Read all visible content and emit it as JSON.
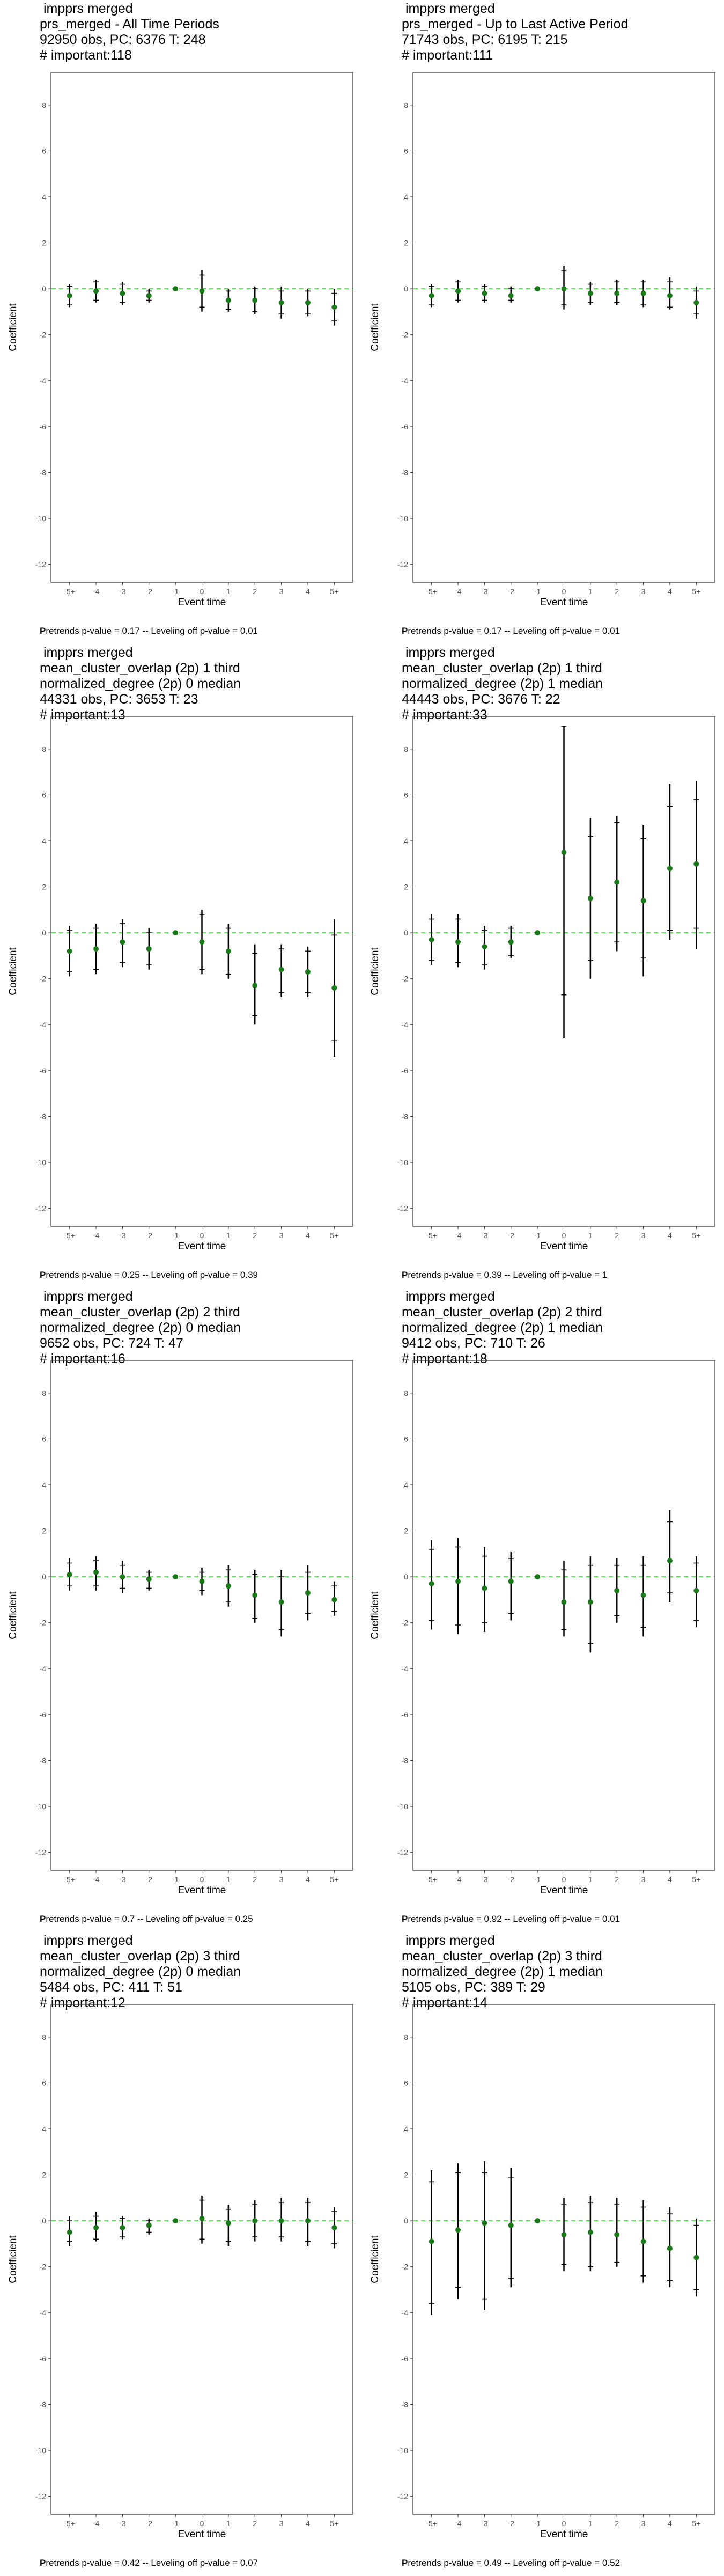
{
  "colors": {
    "point": "#1a7a1a",
    "refline": "#19c219",
    "bar": "#000000",
    "frame": "#333333",
    "tick_text": "#4d4d4d"
  },
  "chart_data": [
    {
      "type": "scatter",
      "title_lines": [
        "impprs merged",
        "prs_merged - All Time Periods",
        "92950 obs, PC: 6376 T: 248",
        "# important:118"
      ],
      "footer": {
        "bold": "P",
        "rest": "retrends p-value = 0.17 -- Leveling off p-value = 0.01"
      },
      "xlabel": "Event time",
      "ylabel": "Coefficient",
      "categories": [
        "-5+",
        "-4",
        "-3",
        "-2",
        "-1",
        "0",
        "1",
        "2",
        "3",
        "4",
        "5+"
      ],
      "ylim": [
        -12.5,
        9
      ],
      "yticks": [
        -12,
        -10,
        -8,
        -6,
        -4,
        -2,
        0,
        2,
        4,
        6,
        8
      ],
      "estimates": [
        -0.3,
        -0.1,
        -0.2,
        -0.3,
        0.0,
        -0.1,
        -0.5,
        -0.5,
        -0.6,
        -0.6,
        -0.8
      ],
      "ci95": [
        [
          -0.8,
          0.2
        ],
        [
          -0.6,
          0.4
        ],
        [
          -0.7,
          0.3
        ],
        [
          -0.6,
          0.0
        ],
        [
          0,
          0
        ],
        [
          -1.0,
          0.8
        ],
        [
          -1.0,
          0.0
        ],
        [
          -1.1,
          0.1
        ],
        [
          -1.3,
          0.1
        ],
        [
          -1.2,
          0.0
        ],
        [
          -1.6,
          0.0
        ]
      ],
      "ci90": [
        [
          -0.7,
          0.1
        ],
        [
          -0.5,
          0.3
        ],
        [
          -0.6,
          0.2
        ],
        [
          -0.5,
          -0.1
        ],
        [
          0,
          0
        ],
        [
          -0.8,
          0.6
        ],
        [
          -0.9,
          -0.1
        ],
        [
          -1.0,
          0.0
        ],
        [
          -1.1,
          -0.1
        ],
        [
          -1.1,
          -0.1
        ],
        [
          -1.4,
          -0.2
        ]
      ]
    },
    {
      "type": "scatter",
      "title_lines": [
        "impprs merged",
        "prs_merged - Up to Last Active Period",
        "71743 obs, PC: 6195 T: 215",
        "# important:111"
      ],
      "footer": {
        "bold": "P",
        "rest": "retrends p-value = 0.17 -- Leveling off p-value = 0.01"
      },
      "xlabel": "Event time",
      "ylabel": "Coefficient",
      "categories": [
        "-5+",
        "-4",
        "-3",
        "-2",
        "-1",
        "0",
        "1",
        "2",
        "3",
        "4",
        "5+"
      ],
      "ylim": [
        -12.5,
        9
      ],
      "yticks": [
        -12,
        -10,
        -8,
        -6,
        -4,
        -2,
        0,
        2,
        4,
        6,
        8
      ],
      "estimates": [
        -0.3,
        -0.1,
        -0.2,
        -0.3,
        0.0,
        0.0,
        -0.2,
        -0.2,
        -0.2,
        -0.3,
        -0.6
      ],
      "ci95": [
        [
          -0.8,
          0.2
        ],
        [
          -0.6,
          0.4
        ],
        [
          -0.6,
          0.2
        ],
        [
          -0.6,
          0.1
        ],
        [
          0,
          0
        ],
        [
          -0.9,
          1.0
        ],
        [
          -0.7,
          0.3
        ],
        [
          -0.7,
          0.4
        ],
        [
          -0.8,
          0.4
        ],
        [
          -0.9,
          0.5
        ],
        [
          -1.3,
          0.1
        ]
      ],
      "ci90": [
        [
          -0.7,
          0.1
        ],
        [
          -0.5,
          0.3
        ],
        [
          -0.5,
          0.1
        ],
        [
          -0.5,
          0.0
        ],
        [
          0,
          0
        ],
        [
          -0.7,
          0.8
        ],
        [
          -0.6,
          0.2
        ],
        [
          -0.6,
          0.3
        ],
        [
          -0.7,
          0.3
        ],
        [
          -0.8,
          0.3
        ],
        [
          -1.1,
          -0.1
        ]
      ]
    },
    {
      "type": "scatter",
      "title_lines": [
        "impprs merged",
        "mean_cluster_overlap (2p) 1 third",
        "normalized_degree (2p) 0 median",
        "44331 obs, PC: 3653 T: 23",
        "# important:13"
      ],
      "footer": {
        "bold": "P",
        "rest": "retrends p-value = 0.25 -- Leveling off p-value = 0.39"
      },
      "xlabel": "Event time",
      "ylabel": "Coefficient",
      "categories": [
        "-5+",
        "-4",
        "-3",
        "-2",
        "-1",
        "0",
        "1",
        "2",
        "3",
        "4",
        "5+"
      ],
      "ylim": [
        -12.5,
        9
      ],
      "yticks": [
        -12,
        -10,
        -8,
        -6,
        -4,
        -2,
        0,
        2,
        4,
        6,
        8
      ],
      "estimates": [
        -0.8,
        -0.7,
        -0.4,
        -0.7,
        0.0,
        -0.4,
        -0.8,
        -2.3,
        -1.6,
        -1.7,
        -2.4
      ],
      "ci95": [
        [
          -1.9,
          0.3
        ],
        [
          -1.8,
          0.4
        ],
        [
          -1.5,
          0.6
        ],
        [
          -1.6,
          0.2
        ],
        [
          0,
          0
        ],
        [
          -1.8,
          1.0
        ],
        [
          -2.0,
          0.4
        ],
        [
          -4.0,
          -0.5
        ],
        [
          -2.8,
          -0.5
        ],
        [
          -2.8,
          -0.6
        ],
        [
          -5.4,
          0.6
        ]
      ],
      "ci90": [
        [
          -1.7,
          0.1
        ],
        [
          -1.6,
          0.2
        ],
        [
          -1.3,
          0.4
        ],
        [
          -1.4,
          0.0
        ],
        [
          0,
          0
        ],
        [
          -1.6,
          0.8
        ],
        [
          -1.8,
          0.2
        ],
        [
          -3.6,
          -0.9
        ],
        [
          -2.6,
          -0.7
        ],
        [
          -2.6,
          -0.8
        ],
        [
          -4.7,
          -0.1
        ]
      ]
    },
    {
      "type": "scatter",
      "title_lines": [
        "impprs merged",
        "mean_cluster_overlap (2p) 1 third",
        "normalized_degree (2p) 1 median",
        "44443 obs, PC: 3676 T: 22",
        "# important:33"
      ],
      "footer": {
        "bold": "P",
        "rest": "retrends p-value = 0.39 -- Leveling off p-value = 1"
      },
      "xlabel": "Event time",
      "ylabel": "Coefficient",
      "categories": [
        "-5+",
        "-4",
        "-3",
        "-2",
        "-1",
        "0",
        "1",
        "2",
        "3",
        "4",
        "5+"
      ],
      "ylim": [
        -12.5,
        9
      ],
      "yticks": [
        -12,
        -10,
        -8,
        -6,
        -4,
        -2,
        0,
        2,
        4,
        6,
        8
      ],
      "estimates": [
        -0.3,
        -0.4,
        -0.6,
        -0.4,
        0.0,
        3.5,
        1.5,
        2.2,
        1.4,
        2.8,
        3.0
      ],
      "ci95": [
        [
          -1.4,
          0.8
        ],
        [
          -1.5,
          0.8
        ],
        [
          -1.6,
          0.3
        ],
        [
          -1.1,
          0.3
        ],
        [
          0,
          0
        ],
        [
          -4.6,
          9.0
        ],
        [
          -2.0,
          5.0
        ],
        [
          -0.8,
          5.1
        ],
        [
          -1.9,
          4.7
        ],
        [
          -0.3,
          6.5
        ],
        [
          -0.7,
          6.6
        ]
      ],
      "ci90": [
        [
          -1.2,
          0.6
        ],
        [
          -1.3,
          0.6
        ],
        [
          -1.4,
          0.1
        ],
        [
          -1.0,
          0.2
        ],
        [
          0,
          0
        ],
        [
          -2.7,
          9.0
        ],
        [
          -1.2,
          4.2
        ],
        [
          -0.4,
          4.8
        ],
        [
          -1.1,
          4.1
        ],
        [
          0.1,
          5.5
        ],
        [
          0.2,
          5.8
        ]
      ]
    },
    {
      "type": "scatter",
      "title_lines": [
        "impprs merged",
        "mean_cluster_overlap (2p) 2 third",
        "normalized_degree (2p) 0 median",
        "9652 obs, PC: 724 T: 47",
        "# important:16"
      ],
      "footer": {
        "bold": "P",
        "rest": "retrends p-value = 0.7 -- Leveling off p-value = 0.25"
      },
      "xlabel": "Event time",
      "ylabel": "Coefficient",
      "categories": [
        "-5+",
        "-4",
        "-3",
        "-2",
        "-1",
        "0",
        "1",
        "2",
        "3",
        "4",
        "5+"
      ],
      "ylim": [
        -12.5,
        9
      ],
      "yticks": [
        -12,
        -10,
        -8,
        -6,
        -4,
        -2,
        0,
        2,
        4,
        6,
        8
      ],
      "estimates": [
        0.1,
        0.2,
        0.0,
        -0.1,
        0.0,
        -0.2,
        -0.4,
        -0.8,
        -1.1,
        -0.7,
        -1.0
      ],
      "ci95": [
        [
          -0.6,
          0.8
        ],
        [
          -0.6,
          0.9
        ],
        [
          -0.7,
          0.7
        ],
        [
          -0.6,
          0.3
        ],
        [
          0,
          0
        ],
        [
          -0.8,
          0.4
        ],
        [
          -1.3,
          0.5
        ],
        [
          -2.0,
          0.3
        ],
        [
          -2.6,
          0.3
        ],
        [
          -1.9,
          0.5
        ],
        [
          -1.7,
          -0.2
        ]
      ],
      "ci90": [
        [
          -0.4,
          0.6
        ],
        [
          -0.4,
          0.7
        ],
        [
          -0.5,
          0.5
        ],
        [
          -0.5,
          0.2
        ],
        [
          0,
          0
        ],
        [
          -0.6,
          0.2
        ],
        [
          -1.1,
          0.3
        ],
        [
          -1.8,
          0.1
        ],
        [
          -2.3,
          0.0
        ],
        [
          -1.6,
          0.2
        ],
        [
          -1.5,
          -0.4
        ]
      ]
    },
    {
      "type": "scatter",
      "title_lines": [
        "impprs merged",
        "mean_cluster_overlap (2p) 2 third",
        "normalized_degree (2p) 1 median",
        "9412 obs, PC: 710 T: 26",
        "# important:18"
      ],
      "footer": {
        "bold": "P",
        "rest": "retrends p-value = 0.92 -- Leveling off p-value = 0.01"
      },
      "xlabel": "Event time",
      "ylabel": "Coefficient",
      "categories": [
        "-5+",
        "-4",
        "-3",
        "-2",
        "-1",
        "0",
        "1",
        "2",
        "3",
        "4",
        "5+"
      ],
      "ylim": [
        -12.5,
        9
      ],
      "yticks": [
        -12,
        -10,
        -8,
        -6,
        -4,
        -2,
        0,
        2,
        4,
        6,
        8
      ],
      "estimates": [
        -0.3,
        -0.2,
        -0.5,
        -0.2,
        0.0,
        -1.1,
        -1.1,
        -0.6,
        -0.8,
        0.7,
        -0.6
      ],
      "ci95": [
        [
          -2.3,
          1.6
        ],
        [
          -2.5,
          1.7
        ],
        [
          -2.4,
          1.3
        ],
        [
          -1.9,
          1.1
        ],
        [
          0,
          0
        ],
        [
          -2.6,
          0.7
        ],
        [
          -3.3,
          0.9
        ],
        [
          -2.0,
          0.8
        ],
        [
          -2.6,
          0.9
        ],
        [
          -1.1,
          2.9
        ],
        [
          -2.2,
          0.9
        ]
      ],
      "ci90": [
        [
          -1.9,
          1.2
        ],
        [
          -2.1,
          1.3
        ],
        [
          -2.0,
          0.9
        ],
        [
          -1.6,
          0.8
        ],
        [
          0,
          0
        ],
        [
          -2.3,
          0.3
        ],
        [
          -2.9,
          0.5
        ],
        [
          -1.7,
          0.5
        ],
        [
          -2.2,
          0.5
        ],
        [
          -0.7,
          2.4
        ],
        [
          -1.9,
          0.6
        ]
      ]
    },
    {
      "type": "scatter",
      "title_lines": [
        "impprs merged",
        "mean_cluster_overlap (2p) 3 third",
        "normalized_degree (2p) 0 median",
        "5484 obs, PC: 411 T: 51",
        "# important:12"
      ],
      "footer": {
        "bold": "P",
        "rest": "retrends p-value = 0.42 -- Leveling off p-value = 0.07"
      },
      "xlabel": "Event time",
      "ylabel": "Coefficient",
      "categories": [
        "-5+",
        "-4",
        "-3",
        "-2",
        "-1",
        "0",
        "1",
        "2",
        "3",
        "4",
        "5+"
      ],
      "ylim": [
        -12.5,
        9
      ],
      "yticks": [
        -12,
        -10,
        -8,
        -6,
        -4,
        -2,
        0,
        2,
        4,
        6,
        8
      ],
      "estimates": [
        -0.5,
        -0.3,
        -0.3,
        -0.2,
        0.0,
        0.1,
        -0.1,
        0.0,
        0.0,
        0.0,
        -0.3
      ],
      "ci95": [
        [
          -1.1,
          0.2
        ],
        [
          -0.9,
          0.4
        ],
        [
          -0.8,
          0.2
        ],
        [
          -0.6,
          0.1
        ],
        [
          0,
          0
        ],
        [
          -1.0,
          1.1
        ],
        [
          -1.1,
          0.7
        ],
        [
          -0.9,
          0.9
        ],
        [
          -0.9,
          1.0
        ],
        [
          -1.1,
          1.0
        ],
        [
          -1.2,
          0.6
        ]
      ],
      "ci90": [
        [
          -0.9,
          0.0
        ],
        [
          -0.8,
          0.2
        ],
        [
          -0.7,
          0.1
        ],
        [
          -0.5,
          0.0
        ],
        [
          0,
          0
        ],
        [
          -0.8,
          0.9
        ],
        [
          -0.9,
          0.5
        ],
        [
          -0.7,
          0.7
        ],
        [
          -0.7,
          0.8
        ],
        [
          -0.9,
          0.8
        ],
        [
          -1.0,
          0.4
        ]
      ]
    },
    {
      "type": "scatter",
      "title_lines": [
        "impprs merged",
        "mean_cluster_overlap (2p) 3 third",
        "normalized_degree (2p) 1 median",
        "5105 obs, PC: 389 T: 29",
        "# important:14"
      ],
      "footer": {
        "bold": "P",
        "rest": "retrends p-value = 0.49 -- Leveling off p-value = 0.52"
      },
      "xlabel": "Event time",
      "ylabel": "Coefficient",
      "categories": [
        "-5+",
        "-4",
        "-3",
        "-2",
        "-1",
        "0",
        "1",
        "2",
        "3",
        "4",
        "5+"
      ],
      "ylim": [
        -12.5,
        9
      ],
      "yticks": [
        -12,
        -10,
        -8,
        -6,
        -4,
        -2,
        0,
        2,
        4,
        6,
        8
      ],
      "estimates": [
        -0.9,
        -0.4,
        -0.1,
        -0.2,
        0.0,
        -0.6,
        -0.5,
        -0.6,
        -0.9,
        -1.2,
        -1.6
      ],
      "ci95": [
        [
          -4.1,
          2.2
        ],
        [
          -3.4,
          2.5
        ],
        [
          -3.9,
          2.6
        ],
        [
          -2.9,
          2.3
        ],
        [
          0,
          0
        ],
        [
          -2.2,
          1.0
        ],
        [
          -2.2,
          1.1
        ],
        [
          -2.0,
          1.0
        ],
        [
          -2.7,
          0.9
        ],
        [
          -2.9,
          0.6
        ],
        [
          -3.3,
          0.1
        ]
      ],
      "ci90": [
        [
          -3.6,
          1.7
        ],
        [
          -2.9,
          2.1
        ],
        [
          -3.4,
          2.1
        ],
        [
          -2.5,
          1.9
        ],
        [
          0,
          0
        ],
        [
          -1.9,
          0.7
        ],
        [
          -2.0,
          0.8
        ],
        [
          -1.8,
          0.7
        ],
        [
          -2.4,
          0.6
        ],
        [
          -2.6,
          0.3
        ],
        [
          -3.0,
          -0.2
        ]
      ]
    }
  ]
}
